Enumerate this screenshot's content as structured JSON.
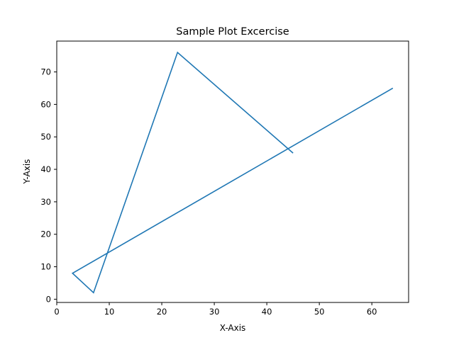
{
  "chart_data": {
    "type": "line",
    "title": "Sample Plot Excercise",
    "xlabel": "X-Axis",
    "ylabel": "Y-Axis",
    "xlim": [
      0,
      67
    ],
    "ylim": [
      -1,
      79.5
    ],
    "xticks": [
      0,
      10,
      20,
      30,
      40,
      50,
      60
    ],
    "yticks": [
      0,
      10,
      20,
      30,
      40,
      50,
      60,
      70
    ],
    "grid": false,
    "series": [
      {
        "color": "#1f77b4",
        "x": [
          64,
          3,
          7,
          23,
          45
        ],
        "y": [
          65,
          8,
          2,
          76,
          45
        ]
      }
    ]
  }
}
